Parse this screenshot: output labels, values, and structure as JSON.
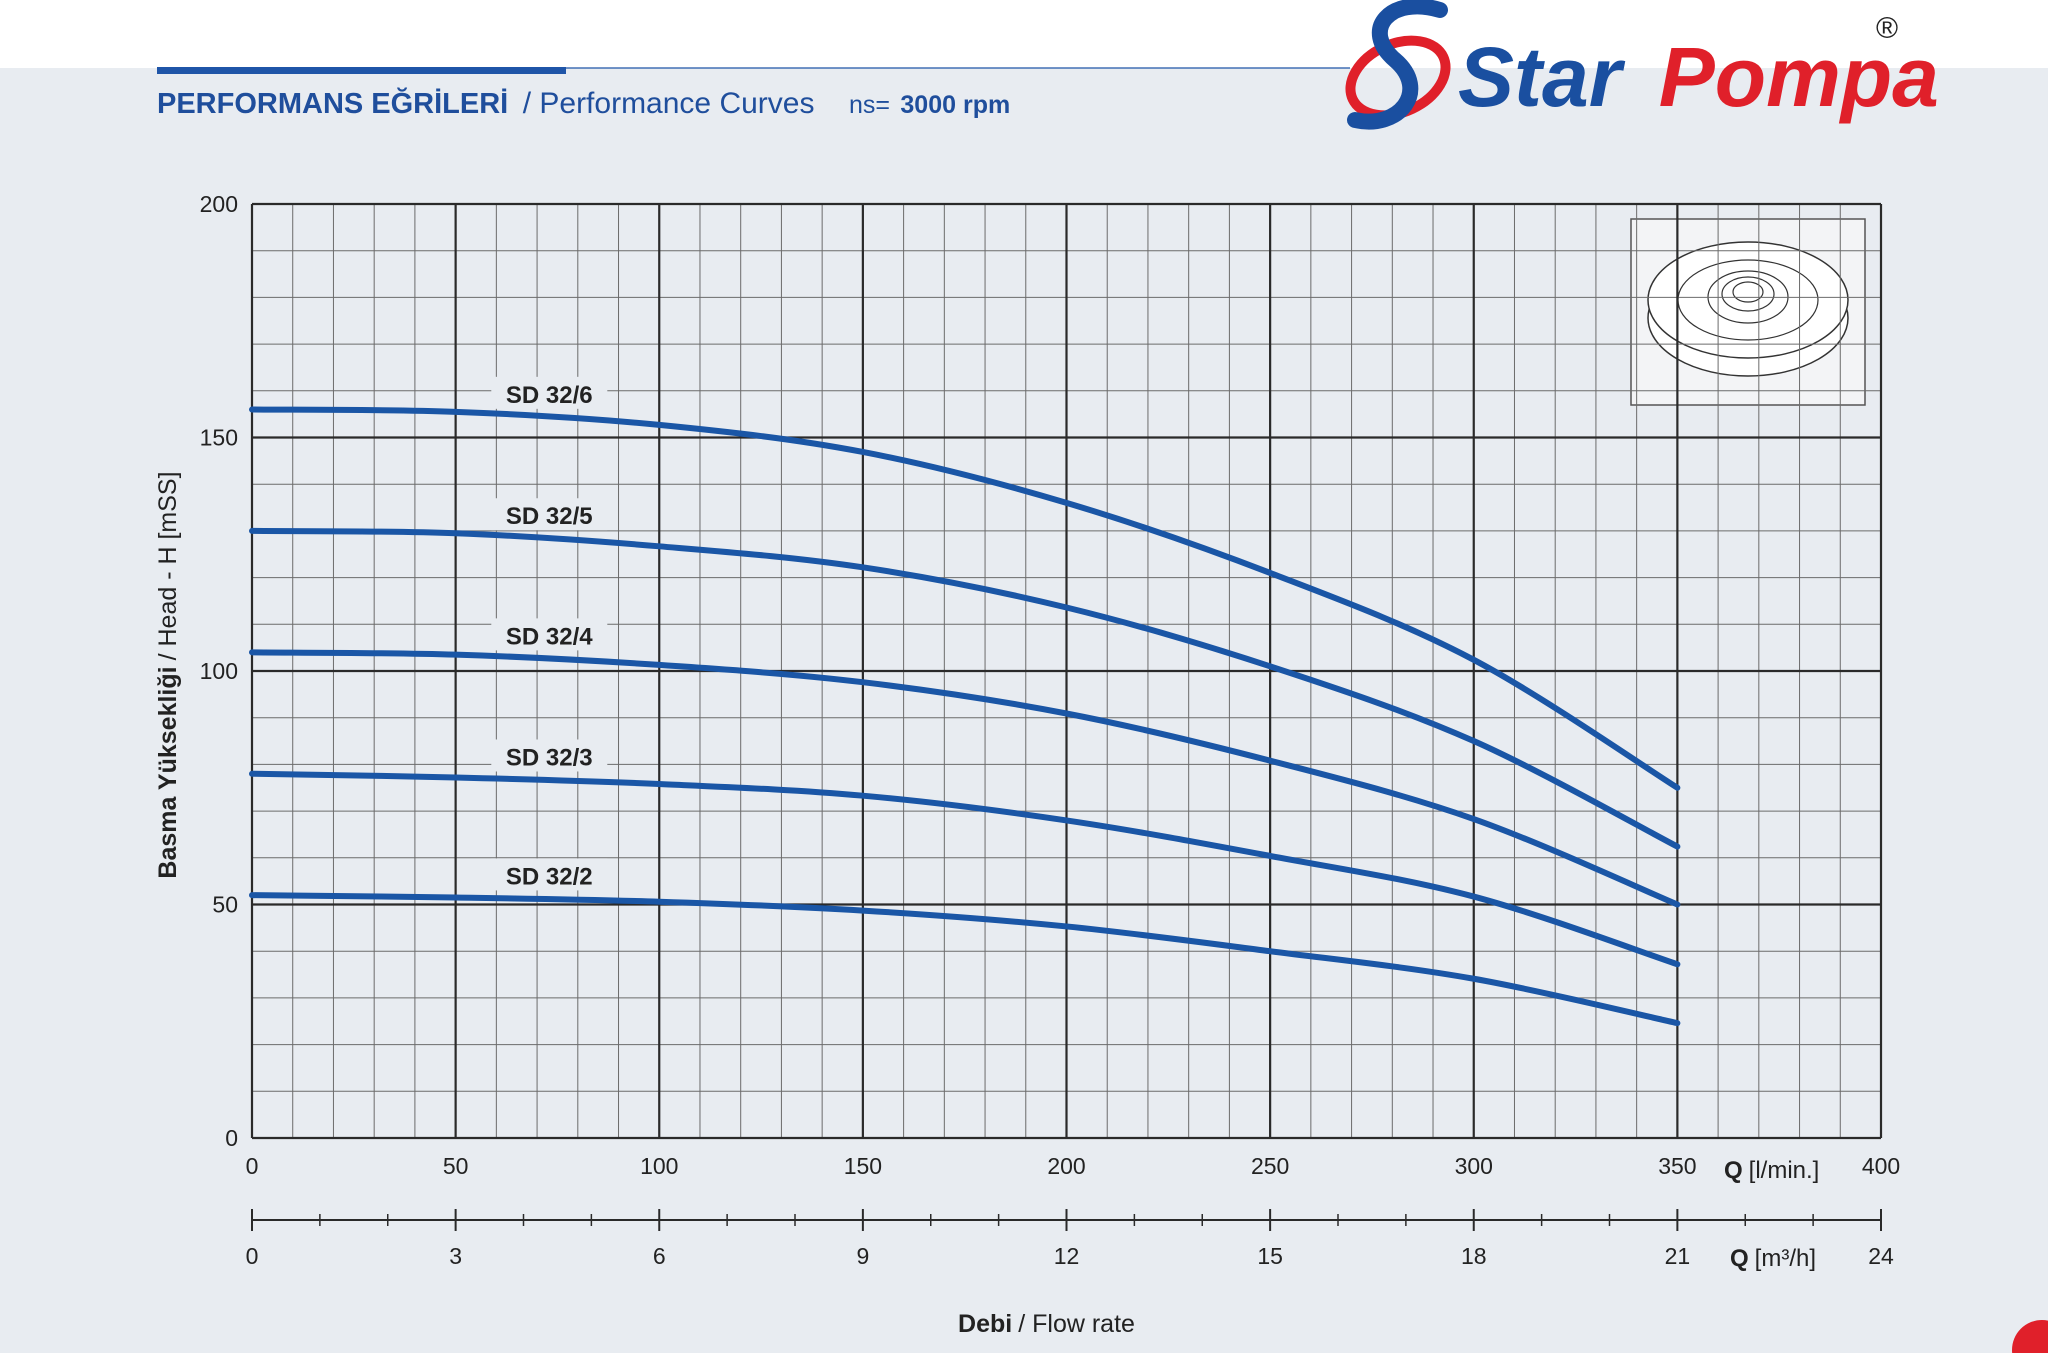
{
  "header": {
    "title": "PERFORMANS EĞRİLERİ",
    "subtitle": "/ Performance Curves",
    "speed_label": "ns=",
    "speed": "3000 rpm"
  },
  "logo": {
    "word1": "Star",
    "word2": "Pompa",
    "mark": "®"
  },
  "chart_data": {
    "type": "line",
    "ylabel": {
      "strong": "Basma Yüksekliği",
      "text": "/ Head - H [mSS]"
    },
    "xlabel": {
      "strong": "Debi",
      "text": "/ Flow rate"
    },
    "xunit": {
      "strong": "Q",
      "text": "[l/min.]"
    },
    "x2unit": {
      "strong": "Q",
      "text": "[m³/h]"
    },
    "x": [
      0,
      50,
      100,
      150,
      200,
      250,
      300,
      350
    ],
    "xlim": [
      0,
      400
    ],
    "xticks": [
      0,
      50,
      100,
      150,
      200,
      250,
      300,
      350,
      400
    ],
    "x2lim": [
      0,
      24
    ],
    "x2ticks": [
      0,
      3,
      6,
      9,
      12,
      15,
      18,
      21,
      24
    ],
    "ylim": [
      0,
      200
    ],
    "yticks": [
      0,
      50,
      100,
      150,
      200
    ],
    "grid": true,
    "series": [
      {
        "name": "SD 32/6",
        "color": "#1a56a6",
        "values": [
          156,
          155.5,
          152.7,
          146.9,
          136,
          121,
          102.4,
          75
        ]
      },
      {
        "name": "SD 32/5",
        "color": "#1a56a6",
        "values": [
          130,
          129.5,
          126.7,
          122.2,
          113.6,
          101,
          85,
          62.4
        ]
      },
      {
        "name": "SD 32/4",
        "color": "#1a56a6",
        "values": [
          104,
          103.5,
          101.3,
          97.6,
          90.9,
          80.8,
          68.3,
          50
        ]
      },
      {
        "name": "SD 32/3",
        "color": "#1a56a6",
        "values": [
          78,
          77.2,
          75.8,
          73.3,
          68,
          60.4,
          51.7,
          37.2
        ]
      },
      {
        "name": "SD 32/2",
        "color": "#1a56a6",
        "values": [
          52,
          51.5,
          50.6,
          48.7,
          45.3,
          40,
          34.1,
          24.6
        ]
      }
    ]
  }
}
